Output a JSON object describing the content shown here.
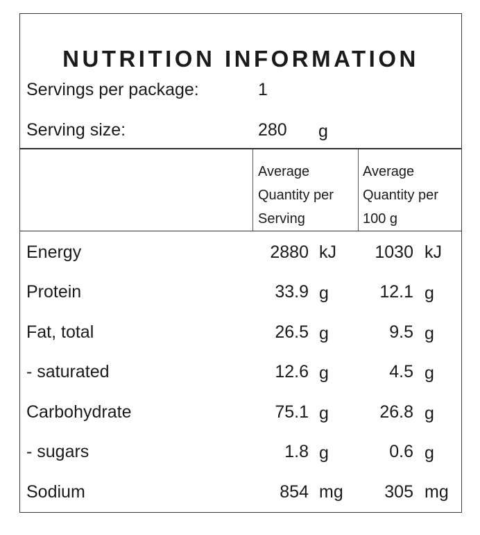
{
  "title": "NUTRITION INFORMATION",
  "servings_per_package": {
    "label": "Servings per package:",
    "value": "1"
  },
  "serving_size": {
    "label": "Serving size:",
    "value": "280",
    "unit": "g"
  },
  "columns": [
    {
      "line1": "Average",
      "line2": "Quantity per",
      "line3": "Serving"
    },
    {
      "line1": "Average",
      "line2": "Quantity per",
      "line3": "100 g"
    }
  ],
  "rows": [
    {
      "label": "Energy",
      "per_serving": "2880",
      "per_serving_unit": "kJ",
      "per_100g": "1030",
      "per_100g_unit": "kJ"
    },
    {
      "label": "Protein",
      "per_serving": "33.9",
      "per_serving_unit": "g",
      "per_100g": "12.1",
      "per_100g_unit": "g"
    },
    {
      "label": "Fat, total",
      "per_serving": "26.5",
      "per_serving_unit": "g",
      "per_100g": "9.5",
      "per_100g_unit": "g"
    },
    {
      "label": "- saturated",
      "per_serving": "12.6",
      "per_serving_unit": "g",
      "per_100g": "4.5",
      "per_100g_unit": "g"
    },
    {
      "label": "Carbohydrate",
      "per_serving": "75.1",
      "per_serving_unit": "g",
      "per_100g": "26.8",
      "per_100g_unit": "g"
    },
    {
      "label": "- sugars",
      "per_serving": "1.8",
      "per_serving_unit": "g",
      "per_100g": "0.6",
      "per_100g_unit": "g"
    },
    {
      "label": "Sodium",
      "per_serving": "854",
      "per_serving_unit": "mg",
      "per_100g": "305",
      "per_100g_unit": "mg"
    }
  ]
}
